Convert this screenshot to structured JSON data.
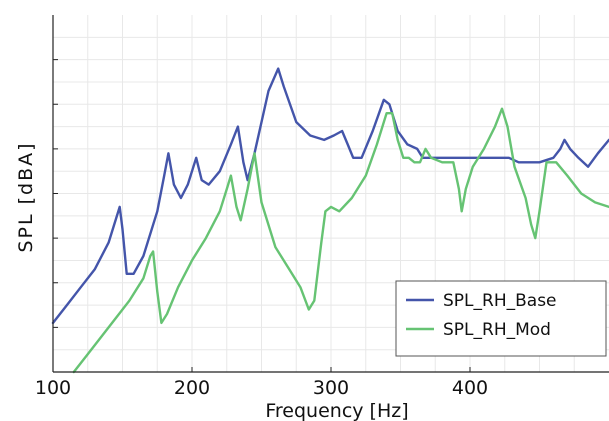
{
  "chart_data": {
    "type": "line",
    "title": "",
    "xlabel": "Frequency [Hz]",
    "ylabel": "SPL [dBA]",
    "xlim": [
      100,
      500
    ],
    "ylim": [
      0,
      8
    ],
    "x_ticks": [
      100,
      200,
      300,
      400
    ],
    "y_ticks_labeled": false,
    "grid": true,
    "legend_position": "bottom-right",
    "series": [
      {
        "name": "SPL_RH_Base",
        "color": "#4455aa",
        "points": [
          [
            100,
            1.1
          ],
          [
            110,
            1.5
          ],
          [
            120,
            1.9
          ],
          [
            130,
            2.3
          ],
          [
            140,
            2.9
          ],
          [
            148,
            3.7
          ],
          [
            150,
            3.2
          ],
          [
            153,
            2.2
          ],
          [
            158,
            2.2
          ],
          [
            165,
            2.6
          ],
          [
            175,
            3.6
          ],
          [
            180,
            4.4
          ],
          [
            183,
            4.9
          ],
          [
            187,
            4.2
          ],
          [
            192,
            3.9
          ],
          [
            197,
            4.2
          ],
          [
            203,
            4.8
          ],
          [
            207,
            4.3
          ],
          [
            212,
            4.2
          ],
          [
            220,
            4.5
          ],
          [
            228,
            5.1
          ],
          [
            233,
            5.5
          ],
          [
            237,
            4.7
          ],
          [
            240,
            4.3
          ],
          [
            245,
            4.9
          ],
          [
            255,
            6.3
          ],
          [
            262,
            6.8
          ],
          [
            266,
            6.4
          ],
          [
            275,
            5.6
          ],
          [
            285,
            5.3
          ],
          [
            295,
            5.2
          ],
          [
            302,
            5.3
          ],
          [
            308,
            5.4
          ],
          [
            312,
            5.1
          ],
          [
            316,
            4.8
          ],
          [
            322,
            4.8
          ],
          [
            330,
            5.4
          ],
          [
            338,
            6.1
          ],
          [
            342,
            6.0
          ],
          [
            348,
            5.4
          ],
          [
            355,
            5.1
          ],
          [
            362,
            5.0
          ],
          [
            366,
            4.8
          ],
          [
            380,
            4.8
          ],
          [
            400,
            4.8
          ],
          [
            420,
            4.8
          ],
          [
            428,
            4.8
          ],
          [
            435,
            4.7
          ],
          [
            440,
            4.7
          ],
          [
            450,
            4.7
          ],
          [
            460,
            4.8
          ],
          [
            465,
            5.0
          ],
          [
            468,
            5.2
          ],
          [
            472,
            5.0
          ],
          [
            478,
            4.8
          ],
          [
            485,
            4.6
          ],
          [
            492,
            4.9
          ],
          [
            500,
            5.2
          ]
        ]
      },
      {
        "name": "SPL_RH_Mod",
        "color": "#66c373",
        "points": [
          [
            115,
            0.0
          ],
          [
            125,
            0.4
          ],
          [
            135,
            0.8
          ],
          [
            145,
            1.2
          ],
          [
            155,
            1.6
          ],
          [
            165,
            2.1
          ],
          [
            170,
            2.6
          ],
          [
            172,
            2.7
          ],
          [
            175,
            1.8
          ],
          [
            178,
            1.1
          ],
          [
            182,
            1.3
          ],
          [
            190,
            1.9
          ],
          [
            200,
            2.5
          ],
          [
            210,
            3.0
          ],
          [
            220,
            3.6
          ],
          [
            225,
            4.1
          ],
          [
            228,
            4.4
          ],
          [
            232,
            3.7
          ],
          [
            235,
            3.4
          ],
          [
            240,
            4.1
          ],
          [
            245,
            4.9
          ],
          [
            250,
            3.8
          ],
          [
            260,
            2.8
          ],
          [
            270,
            2.3
          ],
          [
            278,
            1.9
          ],
          [
            284,
            1.4
          ],
          [
            288,
            1.6
          ],
          [
            293,
            2.9
          ],
          [
            296,
            3.6
          ],
          [
            300,
            3.7
          ],
          [
            306,
            3.6
          ],
          [
            315,
            3.9
          ],
          [
            325,
            4.4
          ],
          [
            333,
            5.1
          ],
          [
            340,
            5.8
          ],
          [
            344,
            5.8
          ],
          [
            348,
            5.2
          ],
          [
            352,
            4.8
          ],
          [
            356,
            4.8
          ],
          [
            360,
            4.7
          ],
          [
            364,
            4.7
          ],
          [
            368,
            5.0
          ],
          [
            372,
            4.8
          ],
          [
            380,
            4.7
          ],
          [
            388,
            4.7
          ],
          [
            392,
            4.1
          ],
          [
            394,
            3.6
          ],
          [
            397,
            4.1
          ],
          [
            402,
            4.6
          ],
          [
            410,
            5.0
          ],
          [
            418,
            5.5
          ],
          [
            423,
            5.9
          ],
          [
            427,
            5.5
          ],
          [
            432,
            4.6
          ],
          [
            440,
            3.9
          ],
          [
            444,
            3.3
          ],
          [
            447,
            3.0
          ],
          [
            450,
            3.6
          ],
          [
            455,
            4.7
          ],
          [
            462,
            4.7
          ],
          [
            470,
            4.4
          ],
          [
            480,
            4.0
          ],
          [
            490,
            3.8
          ],
          [
            500,
            3.7
          ]
        ]
      }
    ]
  }
}
